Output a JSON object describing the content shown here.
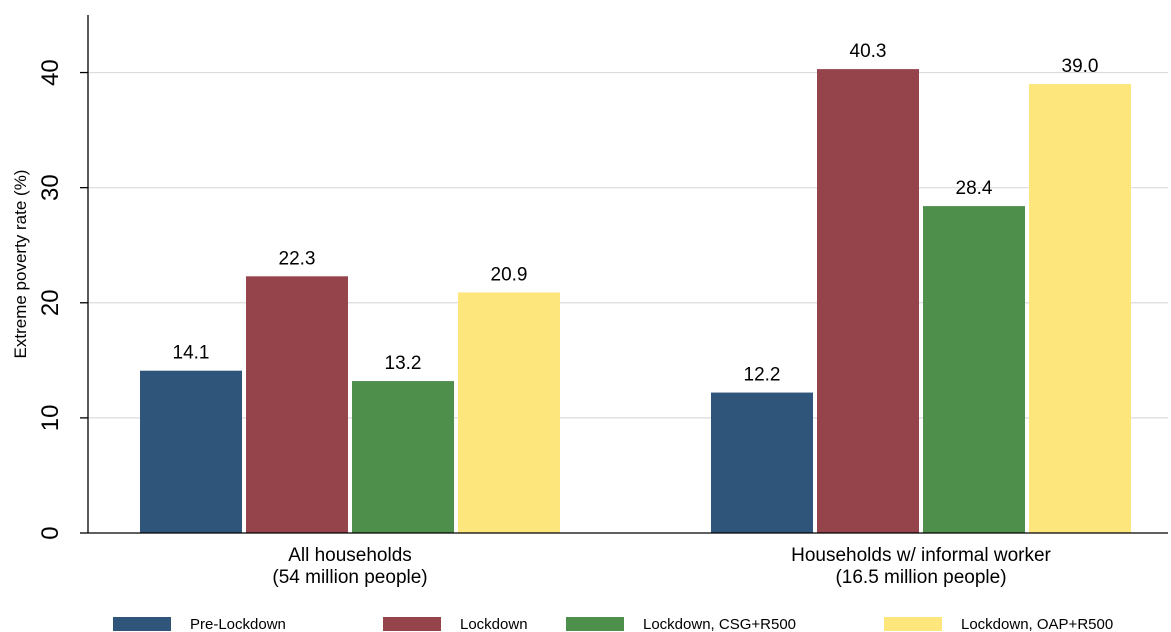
{
  "chart_data": {
    "type": "bar",
    "title": "",
    "xlabel": "",
    "ylabel": "Extreme poverty rate (%)",
    "ylim": [
      0,
      45
    ],
    "yticks": [
      0,
      10,
      20,
      30,
      40
    ],
    "grid": true,
    "legend_position": "bottom",
    "categories": [
      [
        "All households",
        "(54 million people)"
      ],
      [
        "Households w/ informal worker",
        "(16.5 million people)"
      ]
    ],
    "series": [
      {
        "name": "Pre-Lockdown",
        "color": "#2f557a",
        "values": [
          14.1,
          12.2
        ]
      },
      {
        "name": "Lockdown",
        "color": "#96444c",
        "values": [
          22.3,
          40.3
        ]
      },
      {
        "name": "Lockdown, CSG+R500",
        "color": "#4f8f4c",
        "values": [
          13.2,
          28.4
        ]
      },
      {
        "name": "Lockdown, OAP+R500",
        "color": "#fde67c",
        "values": [
          20.9,
          39.0
        ]
      }
    ],
    "value_labels": [
      [
        "14.1",
        "12.2"
      ],
      [
        "22.3",
        "40.3"
      ],
      [
        "13.2",
        "28.4"
      ],
      [
        "20.9",
        "39.0"
      ]
    ]
  }
}
